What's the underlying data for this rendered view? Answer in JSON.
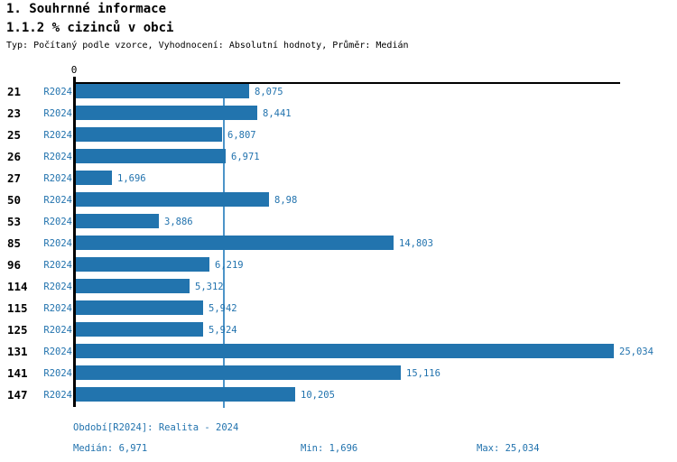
{
  "header": {
    "title": "1. Souhrnné informace",
    "subtitle": "1.1.2 % cizinců v obci",
    "meta": "Typ: Počítaný podle vzorce, Vyhodnocení: Absolutní hodnoty, Průměr: Medián"
  },
  "chart_data": {
    "type": "bar",
    "orientation": "horizontal",
    "title": "1.1.2 % cizinců v obci",
    "series_label": "R2024",
    "categories": [
      "21",
      "23",
      "25",
      "26",
      "27",
      "50",
      "53",
      "85",
      "96",
      "114",
      "115",
      "125",
      "131",
      "141",
      "147"
    ],
    "series": [
      {
        "name": "R2024",
        "values": [
          8.075,
          8.441,
          6.807,
          6.971,
          1.696,
          8.98,
          3.886,
          14.803,
          6.219,
          5.312,
          5.942,
          5.924,
          25.034,
          15.116,
          10.205
        ],
        "value_labels": [
          "8,075",
          "8,441",
          "6,807",
          "6,971",
          "1,696",
          "8,98",
          "3,886",
          "14,803",
          "6,219",
          "5,312",
          "5,942",
          "5,924",
          "25,034",
          "15,116",
          "10,205"
        ]
      }
    ],
    "axis": {
      "zero_label": "0",
      "xlim": [
        0,
        25.4
      ],
      "median_value": 6.971,
      "grid": "off",
      "legend_position": "none"
    },
    "colors": {
      "bar": "#2274AE",
      "text_blue": "#2273AE",
      "median_line": "#4D94C8",
      "axis": "#000000"
    }
  },
  "footer": {
    "period": "Období[R2024]: Realita - 2024",
    "median": "Medián: 6,971",
    "min": "Min: 1,696",
    "max": "Max: 25,034"
  }
}
